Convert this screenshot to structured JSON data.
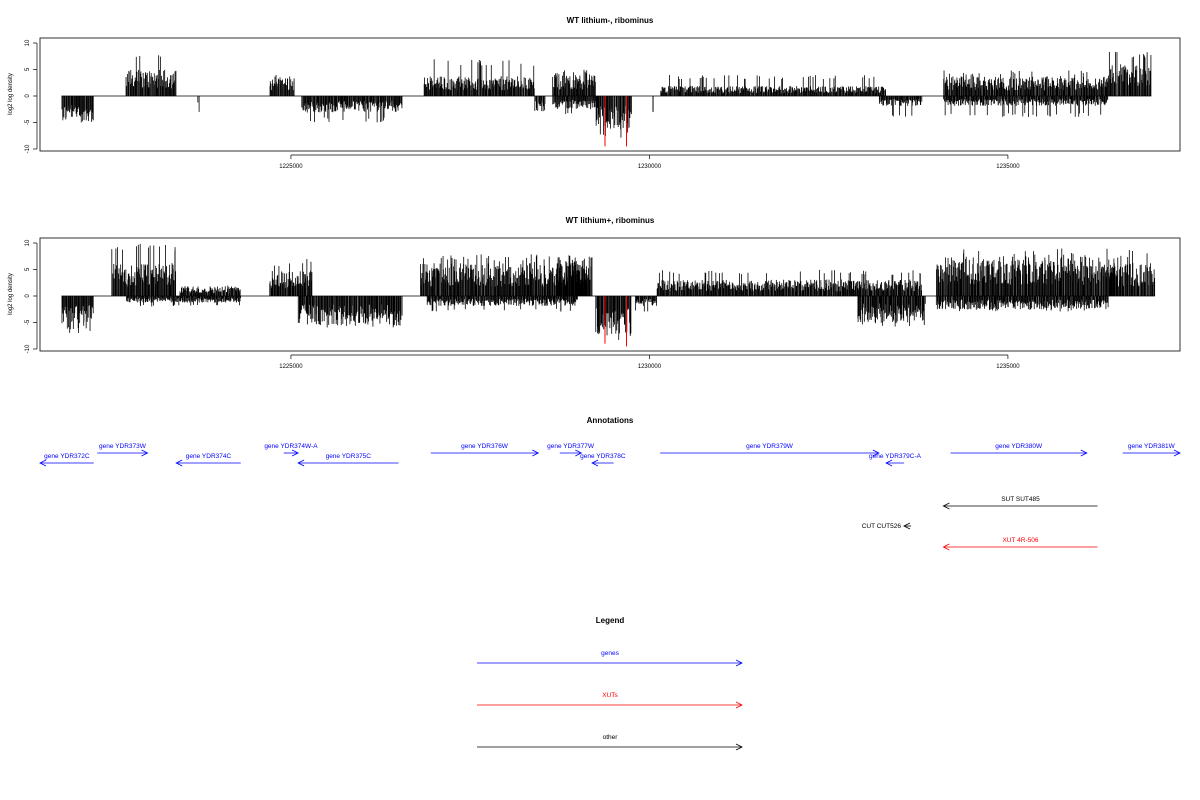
{
  "chart_data": [
    {
      "type": "bar",
      "title": "WT lithium-, ribominus",
      "ylabel": "log2 log density",
      "xlim": [
        1221500,
        1237400
      ],
      "ylim": [
        -10,
        10
      ],
      "yticks": [
        10,
        5,
        0,
        -5,
        -10
      ],
      "xticks": [
        1225000,
        1230000,
        1235000
      ],
      "grid": false,
      "series": [
        {
          "color": "#000000",
          "segments": [
            {
              "x": [
                1221800,
                1222250
              ],
              "sign": -1,
              "level": 4,
              "max": 5
            },
            {
              "x": [
                1222700,
                1223400
              ],
              "sign": 1,
              "level": 4,
              "max": 8
            },
            {
              "x": [
                1223700,
                1223720
              ],
              "sign": -1,
              "level": 3,
              "max": 3
            },
            {
              "x": [
                1224700,
                1225050
              ],
              "sign": 1,
              "level": 3,
              "max": 4
            },
            {
              "x": [
                1225150,
                1226550
              ],
              "sign": -1,
              "level": 2.5,
              "max": 5
            },
            {
              "x": [
                1226850,
                1228400
              ],
              "sign": 1,
              "level": 3,
              "max": 7
            },
            {
              "x": [
                1228400,
                1228550
              ],
              "sign": -1,
              "level": 2,
              "max": 3
            },
            {
              "x": [
                1228650,
                1229250
              ],
              "sign": 1,
              "level": 3.5,
              "max": 5
            },
            {
              "x": [
                1228650,
                1229250
              ],
              "sign": -1,
              "level": 2,
              "max": 4
            },
            {
              "x": [
                1229250,
                1229750
              ],
              "sign": -1,
              "level": 5,
              "max": 8
            },
            {
              "x": [
                1230050,
                1230060
              ],
              "sign": -1,
              "level": 3,
              "max": 3
            },
            {
              "x": [
                1230150,
                1233300
              ],
              "sign": 1,
              "level": 1.5,
              "max": 4
            },
            {
              "x": [
                1233200,
                1233800
              ],
              "sign": -1,
              "level": 1.5,
              "max": 4
            },
            {
              "x": [
                1234100,
                1236400
              ],
              "sign": 1,
              "level": 3,
              "max": 5
            },
            {
              "x": [
                1234100,
                1236400
              ],
              "sign": -1,
              "level": 1.5,
              "max": 4
            },
            {
              "x": [
                1236400,
                1237000
              ],
              "sign": 1,
              "level": 5,
              "max": 9
            }
          ]
        },
        {
          "color": "#ff0000",
          "segments": [
            {
              "x": [
                1229380,
                1229380
              ],
              "sign": -1,
              "level": 9.5,
              "max": 9.5
            },
            {
              "x": [
                1229680,
                1229680
              ],
              "sign": -1,
              "level": 9.5,
              "max": 9.5
            }
          ]
        }
      ]
    },
    {
      "type": "bar",
      "title": "WT lithium+, ribominus",
      "ylabel": "log2 log density",
      "xlim": [
        1221500,
        1237400
      ],
      "ylim": [
        -10,
        10
      ],
      "yticks": [
        10,
        5,
        0,
        -5,
        -10
      ],
      "xticks": [
        1225000,
        1230000,
        1235000
      ],
      "grid": false,
      "series": [
        {
          "color": "#000000",
          "segments": [
            {
              "x": [
                1221800,
                1222250
              ],
              "sign": -1,
              "level": 5,
              "max": 7
            },
            {
              "x": [
                1222500,
                1223400
              ],
              "sign": 1,
              "level": 5,
              "max": 10
            },
            {
              "x": [
                1222700,
                1224300
              ],
              "sign": -1,
              "level": 1,
              "max": 2
            },
            {
              "x": [
                1223450,
                1224300
              ],
              "sign": 1,
              "level": 1.5,
              "max": 2
            },
            {
              "x": [
                1224700,
                1225300
              ],
              "sign": 1,
              "level": 4,
              "max": 7
            },
            {
              "x": [
                1225100,
                1226550
              ],
              "sign": -1,
              "level": 4.5,
              "max": 6
            },
            {
              "x": [
                1226800,
                1229150
              ],
              "sign": 1,
              "level": 5,
              "max": 8
            },
            {
              "x": [
                1226900,
                1229000
              ],
              "sign": -1,
              "level": 1.5,
              "max": 3
            },
            {
              "x": [
                1228700,
                1229200
              ],
              "sign": 1,
              "level": 6,
              "max": 9
            },
            {
              "x": [
                1229250,
                1229750
              ],
              "sign": -1,
              "level": 6,
              "max": 9
            },
            {
              "x": [
                1229800,
                1230100
              ],
              "sign": -1,
              "level": 1.5,
              "max": 3
            },
            {
              "x": [
                1230100,
                1233800
              ],
              "sign": 1,
              "level": 2.5,
              "max": 5
            },
            {
              "x": [
                1232900,
                1233850
              ],
              "sign": -1,
              "level": 4,
              "max": 6
            },
            {
              "x": [
                1234000,
                1236500
              ],
              "sign": 1,
              "level": 6,
              "max": 9
            },
            {
              "x": [
                1234000,
                1236400
              ],
              "sign": -1,
              "level": 2,
              "max": 3
            },
            {
              "x": [
                1236400,
                1237050
              ],
              "sign": 1,
              "level": 5,
              "max": 9
            }
          ]
        },
        {
          "color": "#ff0000",
          "segments": [
            {
              "x": [
                1229380,
                1229380
              ],
              "sign": -1,
              "level": 9,
              "max": 9
            },
            {
              "x": [
                1229680,
                1229680
              ],
              "sign": -1,
              "level": 9.5,
              "max": 9.5
            }
          ]
        }
      ]
    }
  ],
  "annotations": {
    "title": "Annotations",
    "rows": [
      {
        "label": "gene YDR373W",
        "kind": "gene",
        "strand": "+",
        "start": 1222300,
        "end": 1223000,
        "color": "#0000ff",
        "row": 0
      },
      {
        "label": "gene YDR374W-A",
        "kind": "gene",
        "strand": "+",
        "start": 1224900,
        "end": 1225100,
        "color": "#0000ff",
        "row": 0
      },
      {
        "label": "gene YDR376W",
        "kind": "gene",
        "strand": "+",
        "start": 1226950,
        "end": 1228450,
        "color": "#0000ff",
        "row": 0
      },
      {
        "label": "gene YDR377W",
        "kind": "gene",
        "strand": "+",
        "start": 1228750,
        "end": 1229050,
        "color": "#0000ff",
        "row": 0
      },
      {
        "label": "gene YDR379W",
        "kind": "gene",
        "strand": "+",
        "start": 1230150,
        "end": 1233200,
        "color": "#0000ff",
        "row": 0
      },
      {
        "label": "gene YDR380W",
        "kind": "gene",
        "strand": "+",
        "start": 1234200,
        "end": 1236100,
        "color": "#0000ff",
        "row": 0
      },
      {
        "label": "gene YDR381W",
        "kind": "gene",
        "strand": "+",
        "start": 1236600,
        "end": 1237400,
        "color": "#0000ff",
        "row": 0
      },
      {
        "label": "gene YDR372C",
        "kind": "gene",
        "strand": "-",
        "start": 1221500,
        "end": 1222250,
        "color": "#0000ff",
        "row": 1
      },
      {
        "label": "gene YDR374C",
        "kind": "gene",
        "strand": "-",
        "start": 1223400,
        "end": 1224300,
        "color": "#0000ff",
        "row": 1
      },
      {
        "label": "gene YDR375C",
        "kind": "gene",
        "strand": "-",
        "start": 1225100,
        "end": 1226500,
        "color": "#0000ff",
        "row": 1
      },
      {
        "label": "gene YDR378C",
        "kind": "gene",
        "strand": "-",
        "start": 1229200,
        "end": 1229500,
        "color": "#0000ff",
        "row": 1
      },
      {
        "label": "gene YDR379C-A",
        "kind": "gene",
        "strand": "-",
        "start": 1233300,
        "end": 1233550,
        "color": "#0000ff",
        "row": 1
      },
      {
        "label": "SUT SUT485",
        "kind": "other",
        "strand": "-",
        "start": 1234100,
        "end": 1236250,
        "color": "#000000",
        "row": 2
      },
      {
        "label": "CUT CUT526",
        "kind": "other",
        "strand": "-",
        "start": 1233550,
        "end": 1233650,
        "color": "#000000",
        "row": 3
      },
      {
        "label": "XUT 4R-506",
        "kind": "xut",
        "strand": "-",
        "start": 1234100,
        "end": 1236250,
        "color": "#ff0000",
        "row": 4
      }
    ]
  },
  "legend": {
    "title": "Legend",
    "items": [
      {
        "label": "genes",
        "color": "#0000ff"
      },
      {
        "label": "XUTs",
        "color": "#ff0000"
      },
      {
        "label": "other",
        "color": "#000000"
      }
    ]
  }
}
